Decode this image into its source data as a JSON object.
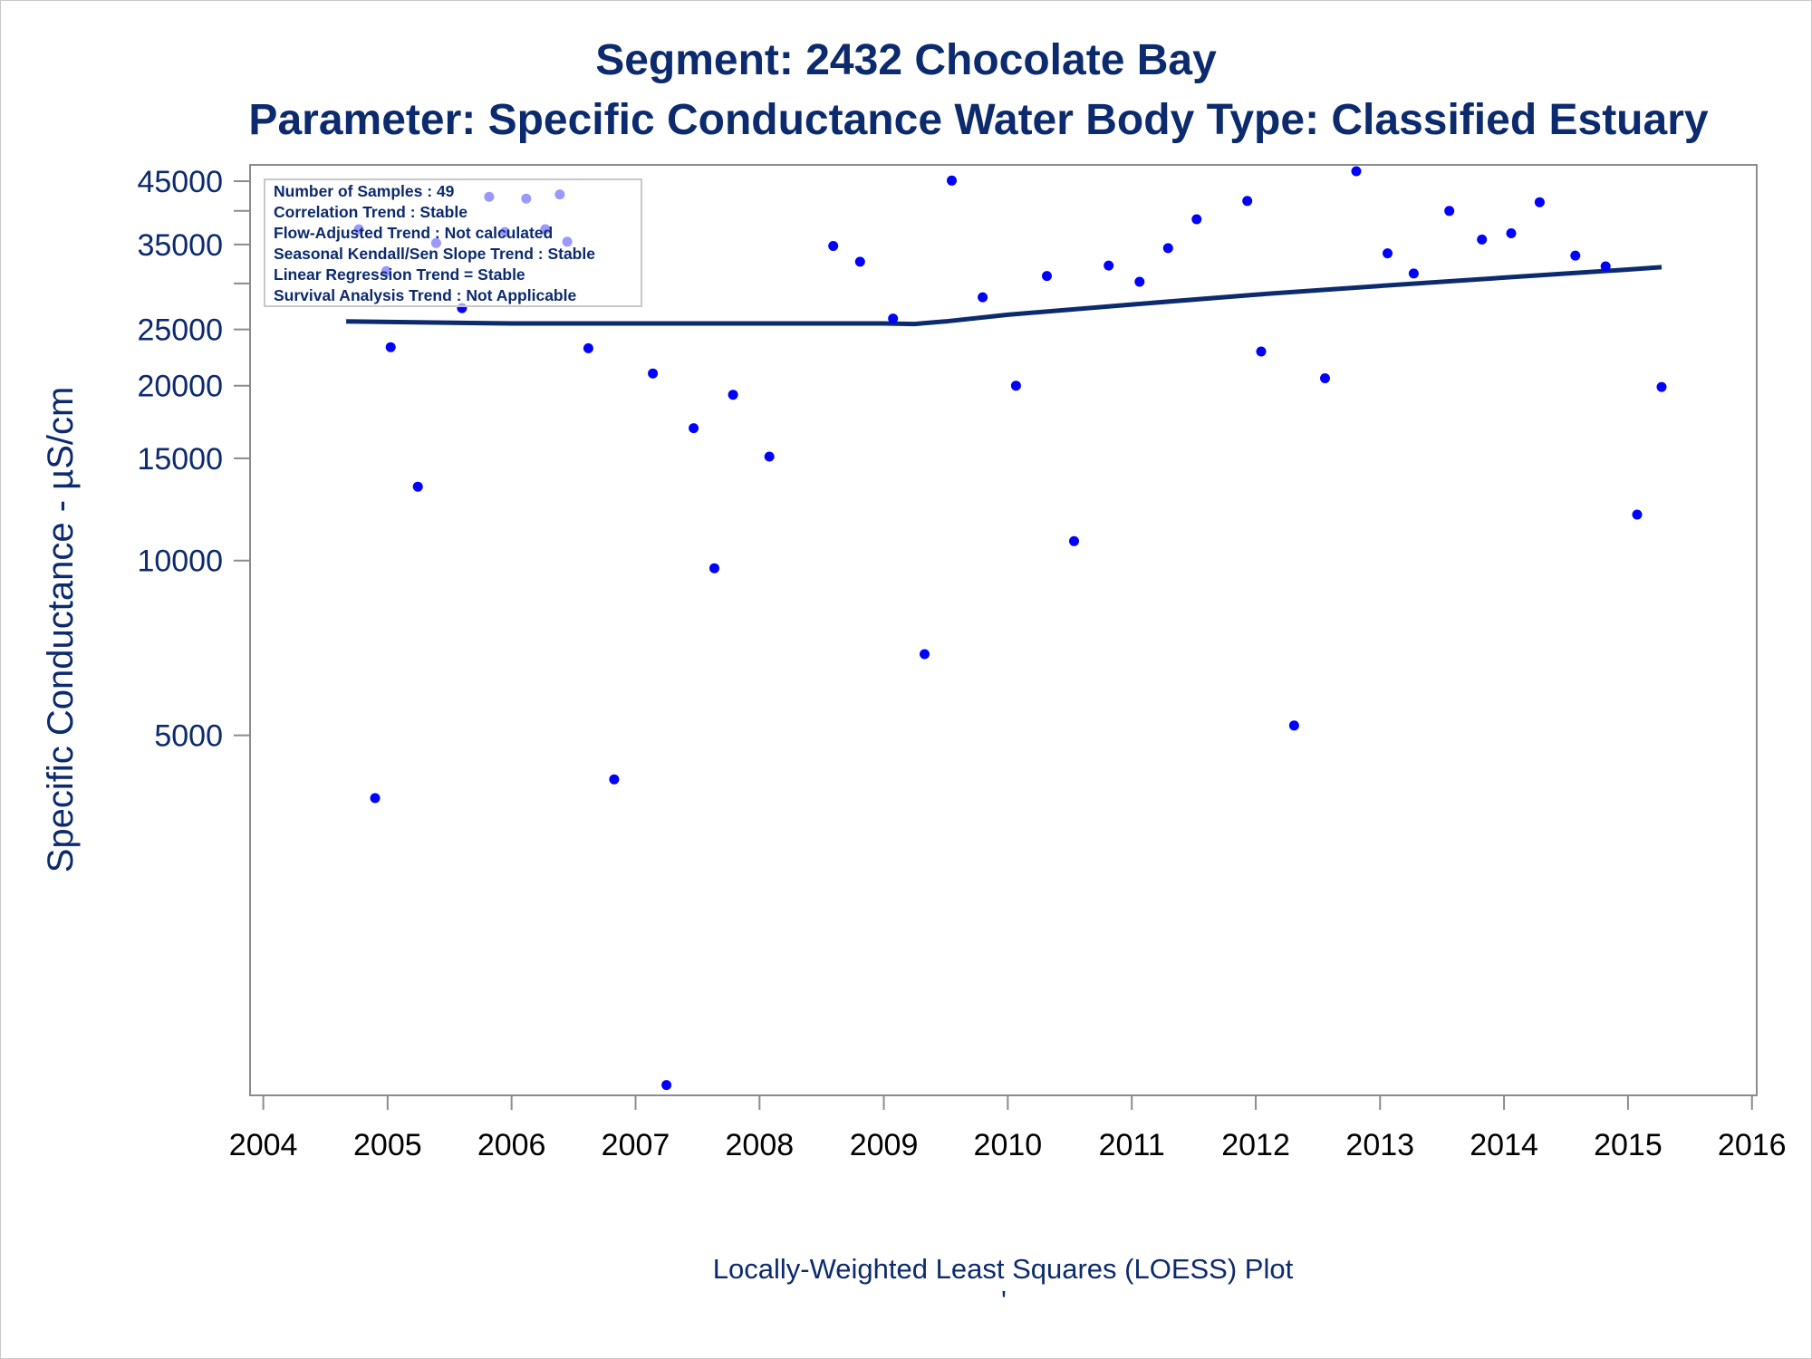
{
  "chart_data": {
    "type": "scatter",
    "title": "Segment: 2432  Chocolate Bay",
    "subtitle": "Parameter: Specific Conductance   Water Body Type: Classified Estuary",
    "ylabel": "Specific Conductance -  µS/cm",
    "xlabel": "",
    "footnote": "Locally-Weighted Least Squares (LOESS) Plot",
    "footnote_mark": "'",
    "y_scale": "log",
    "ylim": [
      1200,
      48000
    ],
    "xlim": [
      "2003-11-23",
      "2016-01-15"
    ],
    "y_ticks": [
      {
        "value": 5000,
        "label": "5000"
      },
      {
        "value": 10000,
        "label": "10000"
      },
      {
        "value": 15000,
        "label": "15000"
      },
      {
        "value": 20000,
        "label": "20000"
      },
      {
        "value": 25000,
        "label": "25000"
      },
      {
        "value": 30000,
        "label": ""
      },
      {
        "value": 35000,
        "label": "35000"
      },
      {
        "value": 40000,
        "label": ""
      },
      {
        "value": 45000,
        "label": "45000"
      }
    ],
    "x_ticks": [
      {
        "value": "2004-01-01",
        "label": "2004"
      },
      {
        "value": "2005-01-01",
        "label": "2005"
      },
      {
        "value": "2006-01-01",
        "label": "2006"
      },
      {
        "value": "2007-01-01",
        "label": "2007"
      },
      {
        "value": "2008-01-01",
        "label": "2008"
      },
      {
        "value": "2009-01-01",
        "label": "2009"
      },
      {
        "value": "2010-01-01",
        "label": "2010"
      },
      {
        "value": "2011-01-01",
        "label": "2011"
      },
      {
        "value": "2012-01-01",
        "label": "2012"
      },
      {
        "value": "2013-01-01",
        "label": "2013"
      },
      {
        "value": "2014-01-01",
        "label": "2014"
      },
      {
        "value": "2015-01-01",
        "label": "2015"
      },
      {
        "value": "2016-01-01",
        "label": "2016"
      }
    ],
    "legend": {
      "placement": "top-left",
      "lines": [
        "Number of Samples : 49",
        "Correlation Trend : Stable",
        "Flow-Adjusted Trend : Not calculated",
        "Seasonal Kendall/Sen Slope Trend : Stable",
        "Linear Regression Trend = Stable",
        "Survival Analysis Trend : Not Applicable"
      ]
    },
    "series": [
      {
        "kind": "points",
        "color": "#0000ff",
        "points": [
          {
            "x": "2004-10-08",
            "y": 37200
          },
          {
            "x": "2004-11-25",
            "y": 3900
          },
          {
            "x": "2004-12-28",
            "y": 31500
          },
          {
            "x": "2005-01-10",
            "y": 23300
          },
          {
            "x": "2005-03-31",
            "y": 13400
          },
          {
            "x": "2005-05-24",
            "y": 35200
          },
          {
            "x": "2005-08-08",
            "y": 27200
          },
          {
            "x": "2005-10-27",
            "y": 42300
          },
          {
            "x": "2005-12-12",
            "y": 36800
          },
          {
            "x": "2006-02-13",
            "y": 42000
          },
          {
            "x": "2006-04-10",
            "y": 37200
          },
          {
            "x": "2006-05-23",
            "y": 42700
          },
          {
            "x": "2006-06-14",
            "y": 35400
          },
          {
            "x": "2006-08-15",
            "y": 23200
          },
          {
            "x": "2006-10-30",
            "y": 4200
          },
          {
            "x": "2007-02-21",
            "y": 21000
          },
          {
            "x": "2007-04-02",
            "y": 1250
          },
          {
            "x": "2007-06-21",
            "y": 16900
          },
          {
            "x": "2007-08-21",
            "y": 9700
          },
          {
            "x": "2007-10-15",
            "y": 19300
          },
          {
            "x": "2008-01-30",
            "y": 15100
          },
          {
            "x": "2008-08-05",
            "y": 34800
          },
          {
            "x": "2008-10-23",
            "y": 32700
          },
          {
            "x": "2009-01-28",
            "y": 26100
          },
          {
            "x": "2009-05-01",
            "y": 6900
          },
          {
            "x": "2009-07-20",
            "y": 45100
          },
          {
            "x": "2009-10-19",
            "y": 28400
          },
          {
            "x": "2010-01-25",
            "y": 20000
          },
          {
            "x": "2010-04-26",
            "y": 30900
          },
          {
            "x": "2010-07-15",
            "y": 10800
          },
          {
            "x": "2010-10-25",
            "y": 32200
          },
          {
            "x": "2011-01-24",
            "y": 30200
          },
          {
            "x": "2011-04-18",
            "y": 34500
          },
          {
            "x": "2011-07-11",
            "y": 38700
          },
          {
            "x": "2011-12-07",
            "y": 41600
          },
          {
            "x": "2012-01-17",
            "y": 22900
          },
          {
            "x": "2012-04-23",
            "y": 5200
          },
          {
            "x": "2012-07-23",
            "y": 20600
          },
          {
            "x": "2012-10-23",
            "y": 46800
          },
          {
            "x": "2013-01-23",
            "y": 33800
          },
          {
            "x": "2013-04-10",
            "y": 31200
          },
          {
            "x": "2013-07-24",
            "y": 40000
          },
          {
            "x": "2013-10-28",
            "y": 35700
          },
          {
            "x": "2014-01-22",
            "y": 36600
          },
          {
            "x": "2014-04-16",
            "y": 41400
          },
          {
            "x": "2014-07-30",
            "y": 33500
          },
          {
            "x": "2014-10-27",
            "y": 32100
          },
          {
            "x": "2015-01-28",
            "y": 12000
          },
          {
            "x": "2015-04-10",
            "y": 19900
          }
        ]
      },
      {
        "kind": "loess",
        "color": "#0c2a6e",
        "points": [
          {
            "x": "2004-09-01",
            "y": 25800
          },
          {
            "x": "2006-01-01",
            "y": 25600
          },
          {
            "x": "2007-01-01",
            "y": 25600
          },
          {
            "x": "2008-01-01",
            "y": 25600
          },
          {
            "x": "2009-01-01",
            "y": 25600
          },
          {
            "x": "2009-04-01",
            "y": 25550
          },
          {
            "x": "2009-07-01",
            "y": 25800
          },
          {
            "x": "2010-01-01",
            "y": 26500
          },
          {
            "x": "2011-01-01",
            "y": 27600
          },
          {
            "x": "2012-01-01",
            "y": 28700
          },
          {
            "x": "2013-01-01",
            "y": 29700
          },
          {
            "x": "2014-01-01",
            "y": 30700
          },
          {
            "x": "2015-01-01",
            "y": 31700
          },
          {
            "x": "2015-04-10",
            "y": 32000
          }
        ]
      }
    ]
  }
}
